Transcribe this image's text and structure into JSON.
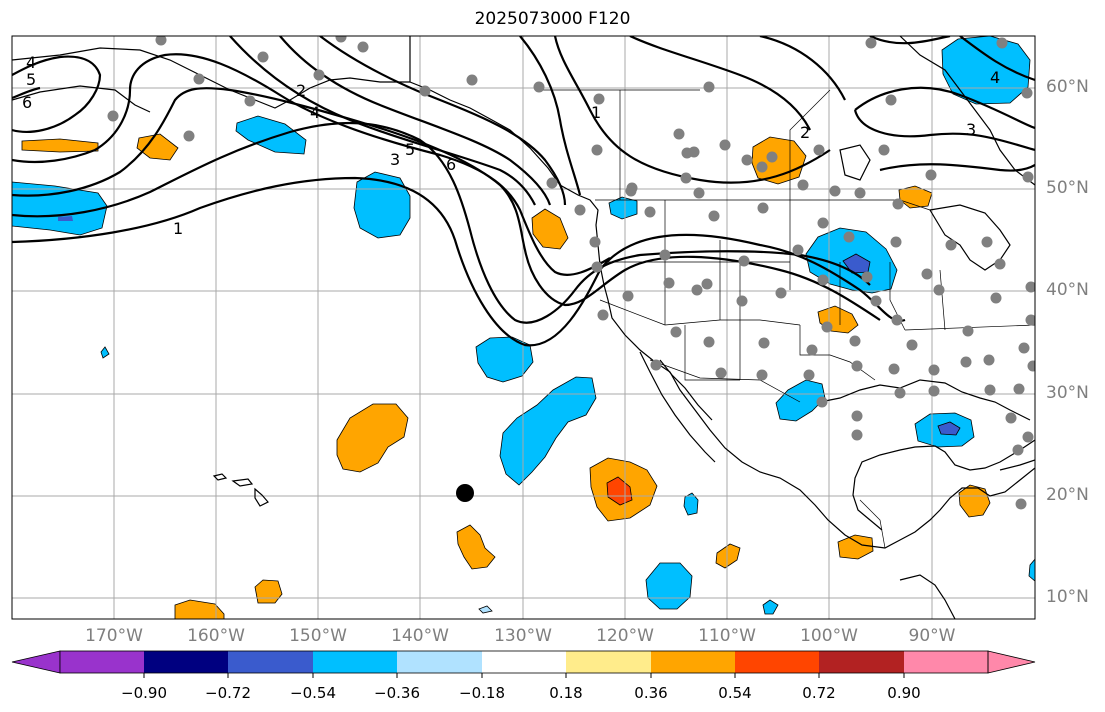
{
  "title": "2025073000 F120",
  "lat_labels": [
    "60°N",
    "50°N",
    "40°N",
    "30°N",
    "20°N",
    "10°N"
  ],
  "lon_labels": [
    "170°W",
    "160°W",
    "150°W",
    "140°W",
    "130°W",
    "120°W",
    "110°W",
    "100°W",
    "90°W"
  ],
  "contour_labels": [
    "4",
    "5",
    "6",
    "1",
    "2",
    "3",
    "4",
    "5",
    "6",
    "1",
    "2",
    "3",
    "4"
  ],
  "colorbar": {
    "ticks": [
      "−0.90",
      "−0.72",
      "−0.54",
      "−0.36",
      "−0.18",
      "0.18",
      "0.36",
      "0.54",
      "0.72",
      "0.90"
    ],
    "colors": [
      "#9933cc",
      "#000080",
      "#3a5bcd",
      "#00bfff",
      "#b0e2ff",
      "#ffffff",
      "#ffec8b",
      "#ffa500",
      "#ff4500",
      "#b22222",
      "#ff88aa"
    ]
  },
  "fill_colors": {
    "neg_light": "#00bfff",
    "neg_mid": "#3a5bcd",
    "pos_light": "#ffa500",
    "pos_mid": "#ff4500"
  }
}
